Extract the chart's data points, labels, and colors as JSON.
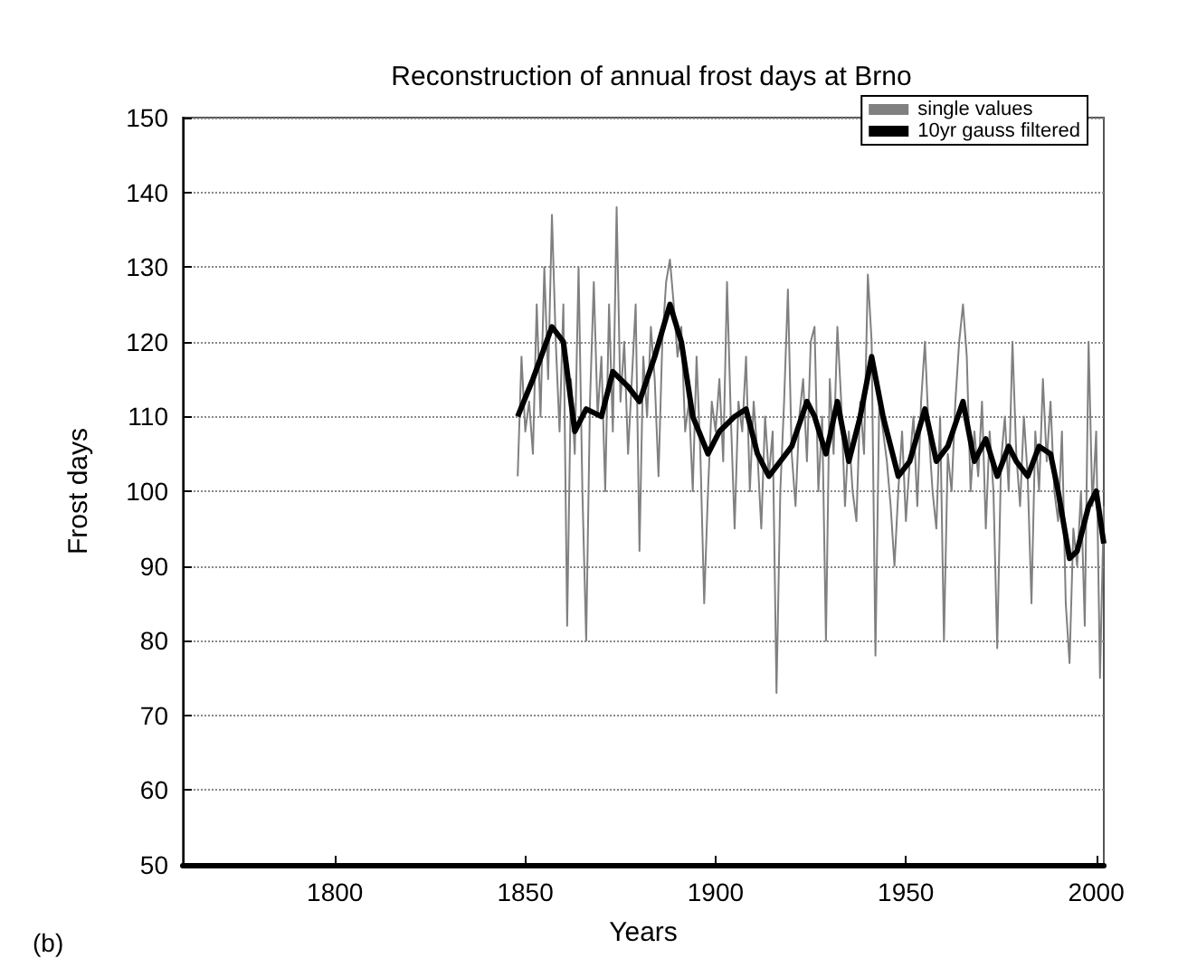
{
  "chart_data": {
    "type": "line",
    "title": "Reconstruction of annual frost days at Brno",
    "xlabel": "Years",
    "ylabel": "Frost days",
    "annotations": [
      "(b)"
    ],
    "xlim": [
      1760,
      2002
    ],
    "xticks": [
      1800,
      1850,
      1900,
      1950,
      2000
    ],
    "ylim": [
      50,
      150
    ],
    "yticks": [
      50,
      60,
      70,
      80,
      90,
      100,
      110,
      120,
      130,
      140,
      150
    ],
    "grid": "y",
    "legend": "top right",
    "marker": "none",
    "series": [
      {
        "name": "single values",
        "color": "#808080",
        "x": [
          1848,
          1849,
          1850,
          1851,
          1852,
          1853,
          1854,
          1855,
          1856,
          1857,
          1858,
          1859,
          1860,
          1861,
          1862,
          1863,
          1864,
          1865,
          1866,
          1867,
          1868,
          1869,
          1870,
          1871,
          1872,
          1873,
          1874,
          1875,
          1876,
          1877,
          1878,
          1879,
          1880,
          1881,
          1882,
          1883,
          1884,
          1885,
          1886,
          1887,
          1888,
          1889,
          1890,
          1891,
          1892,
          1893,
          1894,
          1895,
          1896,
          1897,
          1898,
          1899,
          1900,
          1901,
          1902,
          1903,
          1904,
          1905,
          1906,
          1907,
          1908,
          1909,
          1910,
          1911,
          1912,
          1913,
          1914,
          1915,
          1916,
          1917,
          1918,
          1919,
          1920,
          1921,
          1922,
          1923,
          1924,
          1925,
          1926,
          1927,
          1928,
          1929,
          1930,
          1931,
          1932,
          1933,
          1934,
          1935,
          1936,
          1937,
          1938,
          1939,
          1940,
          1941,
          1942,
          1943,
          1944,
          1945,
          1946,
          1947,
          1948,
          1949,
          1950,
          1951,
          1952,
          1953,
          1954,
          1955,
          1956,
          1957,
          1958,
          1959,
          1960,
          1961,
          1962,
          1963,
          1964,
          1965,
          1966,
          1967,
          1968,
          1969,
          1970,
          1971,
          1972,
          1973,
          1974,
          1975,
          1976,
          1977,
          1978,
          1979,
          1980,
          1981,
          1982,
          1983,
          1984,
          1985,
          1986,
          1987,
          1988,
          1989,
          1990,
          1991,
          1992,
          1993,
          1994,
          1995,
          1996,
          1997,
          1998,
          1999,
          2000,
          2001,
          2002
        ],
        "values": [
          102,
          118,
          108,
          112,
          105,
          125,
          110,
          130,
          115,
          137,
          120,
          108,
          125,
          82,
          115,
          105,
          130,
          100,
          80,
          112,
          128,
          110,
          118,
          100,
          125,
          108,
          138,
          112,
          120,
          105,
          115,
          125,
          92,
          118,
          110,
          122,
          115,
          102,
          120,
          128,
          131,
          125,
          118,
          122,
          108,
          112,
          100,
          118,
          105,
          85,
          100,
          112,
          108,
          115,
          104,
          128,
          110,
          95,
          112,
          108,
          118,
          100,
          112,
          105,
          95,
          110,
          102,
          108,
          73,
          100,
          112,
          127,
          105,
          98,
          110,
          115,
          104,
          120,
          122,
          100,
          110,
          80,
          115,
          105,
          122,
          112,
          98,
          108,
          100,
          96,
          112,
          105,
          129,
          120,
          78,
          112,
          108,
          104,
          98,
          90,
          100,
          108,
          96,
          104,
          110,
          98,
          112,
          120,
          108,
          100,
          95,
          110,
          80,
          105,
          100,
          112,
          120,
          125,
          118,
          100,
          108,
          102,
          112,
          95,
          108,
          100,
          79,
          104,
          110,
          100,
          120,
          105,
          98,
          110,
          102,
          85,
          108,
          100,
          115,
          104,
          112,
          100,
          96,
          108,
          85,
          77,
          95,
          90,
          100,
          82,
          120,
          98,
          108,
          75,
          98
        ]
      },
      {
        "name": "10yr gauss filtered",
        "color": "#000000",
        "x": [
          1848,
          1852,
          1857,
          1860,
          1863,
          1866,
          1870,
          1873,
          1877,
          1880,
          1884,
          1888,
          1891,
          1894,
          1898,
          1901,
          1905,
          1908,
          1911,
          1914,
          1917,
          1920,
          1924,
          1926,
          1929,
          1932,
          1935,
          1938,
          1941,
          1944,
          1948,
          1951,
          1955,
          1958,
          1961,
          1965,
          1968,
          1971,
          1974,
          1977,
          1979,
          1982,
          1985,
          1988,
          1990,
          1993,
          1995,
          1998,
          2000,
          2002
        ],
        "values": [
          110,
          115,
          122,
          120,
          108,
          111,
          110,
          116,
          114,
          112,
          118,
          125,
          120,
          110,
          105,
          108,
          110,
          111,
          105,
          102,
          104,
          106,
          112,
          110,
          105,
          112,
          104,
          110,
          118,
          110,
          102,
          104,
          111,
          104,
          106,
          112,
          104,
          107,
          102,
          106,
          104,
          102,
          106,
          105,
          100,
          91,
          92,
          98,
          100,
          93
        ]
      }
    ]
  }
}
